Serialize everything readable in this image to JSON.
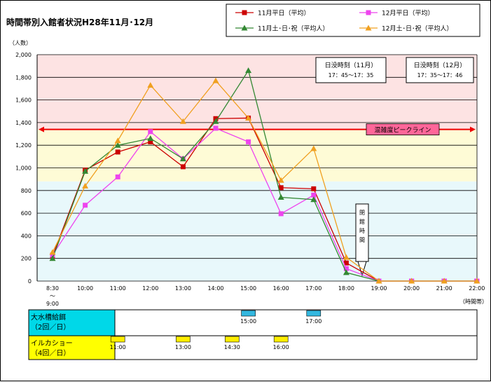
{
  "chart_data": {
    "type": "line",
    "title": "時間帯別入館者状況H28年11月･12月",
    "ylabel": "（人数）",
    "xlabel": "（時間帯）",
    "ylim": [
      0,
      2000
    ],
    "yticks": [
      "0",
      "200",
      "400",
      "600",
      "800",
      "1,000",
      "1,200",
      "1,400",
      "1,600",
      "1,800",
      "2,000"
    ],
    "categories": [
      "8:30\n～\n9:00",
      "10:00",
      "11:00",
      "12:00",
      "13:00",
      "14:00",
      "15:00",
      "16:00",
      "17:00",
      "18:00",
      "19:00",
      "20:00",
      "21:00",
      "22:00"
    ],
    "series": [
      {
        "name": "11月平日（平均）",
        "color": "#cc0000",
        "marker": "square",
        "values": [
          220,
          980,
          1140,
          1230,
          1010,
          1435,
          1440,
          825,
          815,
          160,
          0,
          0,
          0,
          0
        ]
      },
      {
        "name": "12月平日（平均）",
        "color": "#ee44ee",
        "marker": "square",
        "values": [
          230,
          670,
          920,
          1320,
          1080,
          1350,
          1230,
          595,
          760,
          110,
          0,
          0,
          0,
          0
        ]
      },
      {
        "name": "11月土･日･祝（平均人）",
        "color": "#338833",
        "marker": "triangle",
        "values": [
          200,
          970,
          1200,
          1260,
          1080,
          1410,
          1860,
          740,
          720,
          75,
          0,
          0,
          0,
          0
        ]
      },
      {
        "name": "12月土･日･祝（平均人）",
        "color": "#f0a020",
        "marker": "triangle",
        "values": [
          255,
          840,
          1240,
          1730,
          1410,
          1770,
          1440,
          890,
          1170,
          210,
          0,
          0,
          0,
          0
        ]
      }
    ],
    "peak_line": {
      "label": "混雑度ピークライン",
      "value": 1340,
      "color": "#ee0000"
    },
    "sunset_boxes": [
      {
        "title": "日没時刻（11月）",
        "time": "17：45～17：35"
      },
      {
        "title": "日没時刻（12月）",
        "time": "17：35～17：46"
      }
    ],
    "closing_label": "閉館時間",
    "bands": [
      {
        "from": 1340,
        "to": 2000,
        "color": "#fde3e3"
      },
      {
        "from": 880,
        "to": 1340,
        "color": "#fefbd6"
      },
      {
        "from": 0,
        "to": 880,
        "color": "#e8f8fb"
      }
    ],
    "grid": true,
    "legend_position": "top-right"
  },
  "schedule": {
    "rows": [
      {
        "label_line1": "大水槽給餌",
        "label_line2": "（2回／日）",
        "color": "#00d8e8",
        "item_color": "#33b8e0",
        "items": [
          "15:00",
          "17:00"
        ]
      },
      {
        "label_line1": "イルカショー",
        "label_line2": "（4回／日）",
        "color": "#ffff00",
        "item_color": "#ffee00",
        "items": [
          "11:00",
          "13:00",
          "14:30",
          "16:00"
        ]
      }
    ]
  }
}
